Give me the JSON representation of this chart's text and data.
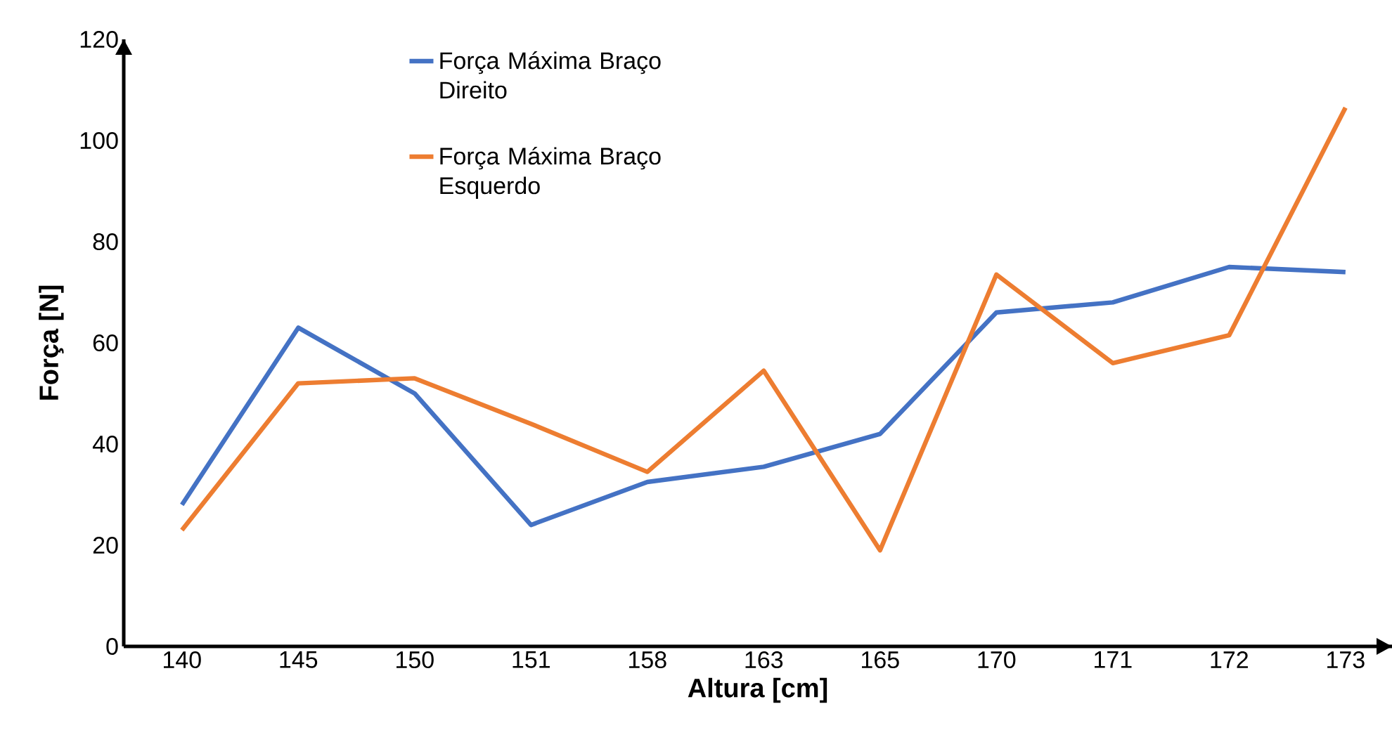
{
  "chart_data": {
    "type": "line",
    "xlabel": "Altura [cm]",
    "ylabel": "Força [N]",
    "categories": [
      "140",
      "145",
      "150",
      "151",
      "158",
      "163",
      "165",
      "170",
      "171",
      "172",
      "173"
    ],
    "series": [
      {
        "name": "Força Máxima Braço Direito",
        "color": "#4472c4",
        "values": [
          28,
          63,
          50,
          24,
          32.5,
          35.5,
          42,
          66,
          68,
          75,
          74
        ]
      },
      {
        "name": "Força Máxima Braço Esquerdo",
        "color": "#ed7d31",
        "values": [
          23,
          52,
          53,
          44,
          34.5,
          54.5,
          19,
          73.5,
          56,
          61.5,
          106.5
        ]
      }
    ],
    "ylim": [
      0,
      120
    ],
    "yticks": [
      0,
      20,
      40,
      60,
      80,
      100,
      120
    ],
    "legend": "top"
  }
}
